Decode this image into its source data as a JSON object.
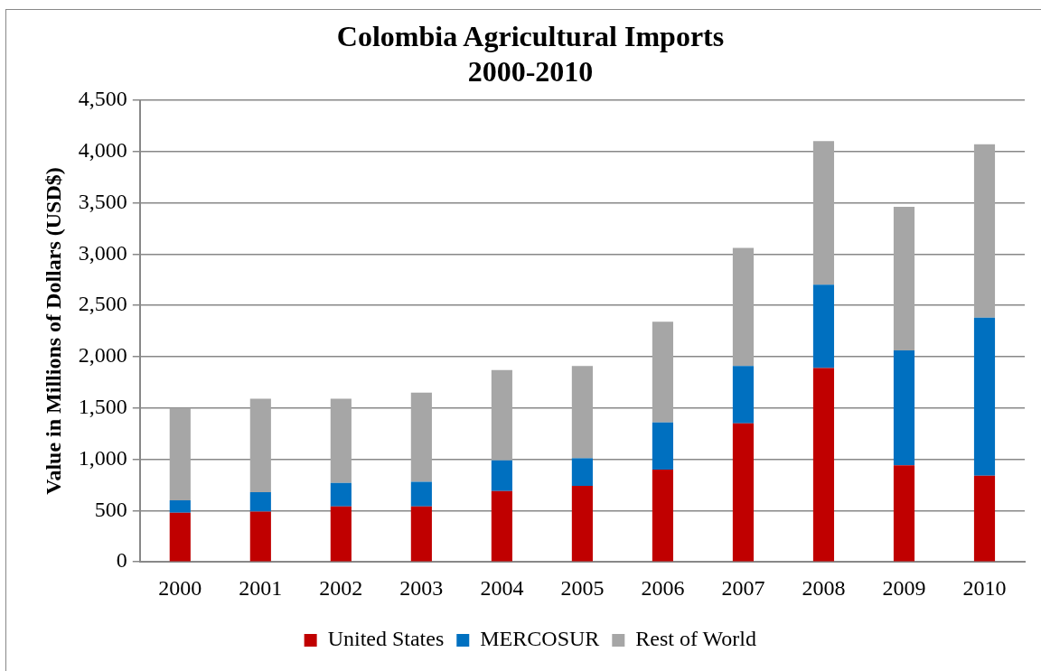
{
  "chart_data": {
    "type": "bar",
    "title": "Colombia Agricultural Imports",
    "subtitle": "2000-2010",
    "ylabel": "Value in Millions of Dollars (USD$)",
    "categories": [
      "2000",
      "2001",
      "2002",
      "2003",
      "2004",
      "2005",
      "2006",
      "2007",
      "2008",
      "2009",
      "2010"
    ],
    "series": [
      {
        "name": "United States",
        "color": "#c00000",
        "values": [
          480,
          490,
          540,
          540,
          690,
          740,
          900,
          1350,
          1890,
          940,
          840
        ]
      },
      {
        "name": "MERCOSUR",
        "color": "#0070c0",
        "values": [
          120,
          190,
          230,
          240,
          300,
          270,
          460,
          560,
          810,
          1120,
          1540
        ]
      },
      {
        "name": "Rest of World",
        "color": "#a6a6a6",
        "values": [
          900,
          910,
          820,
          870,
          880,
          900,
          980,
          1150,
          1400,
          1400,
          1690
        ]
      }
    ],
    "stacked": true,
    "ylim": [
      0,
      4500
    ],
    "yticks": [
      0,
      500,
      {
        "value": 1000,
        "label": "1,000"
      },
      {
        "value": 1500,
        "label": "1,500"
      },
      {
        "value": 2000,
        "label": "2,000"
      },
      {
        "value": 2500,
        "label": "2,500"
      },
      {
        "value": 3000,
        "label": "3,000"
      },
      {
        "value": 3500,
        "label": "3,500"
      },
      {
        "value": 4000,
        "label": "4,000"
      },
      {
        "value": 4500,
        "label": "4,500"
      }
    ],
    "grid": "y",
    "legend": "bottom"
  }
}
